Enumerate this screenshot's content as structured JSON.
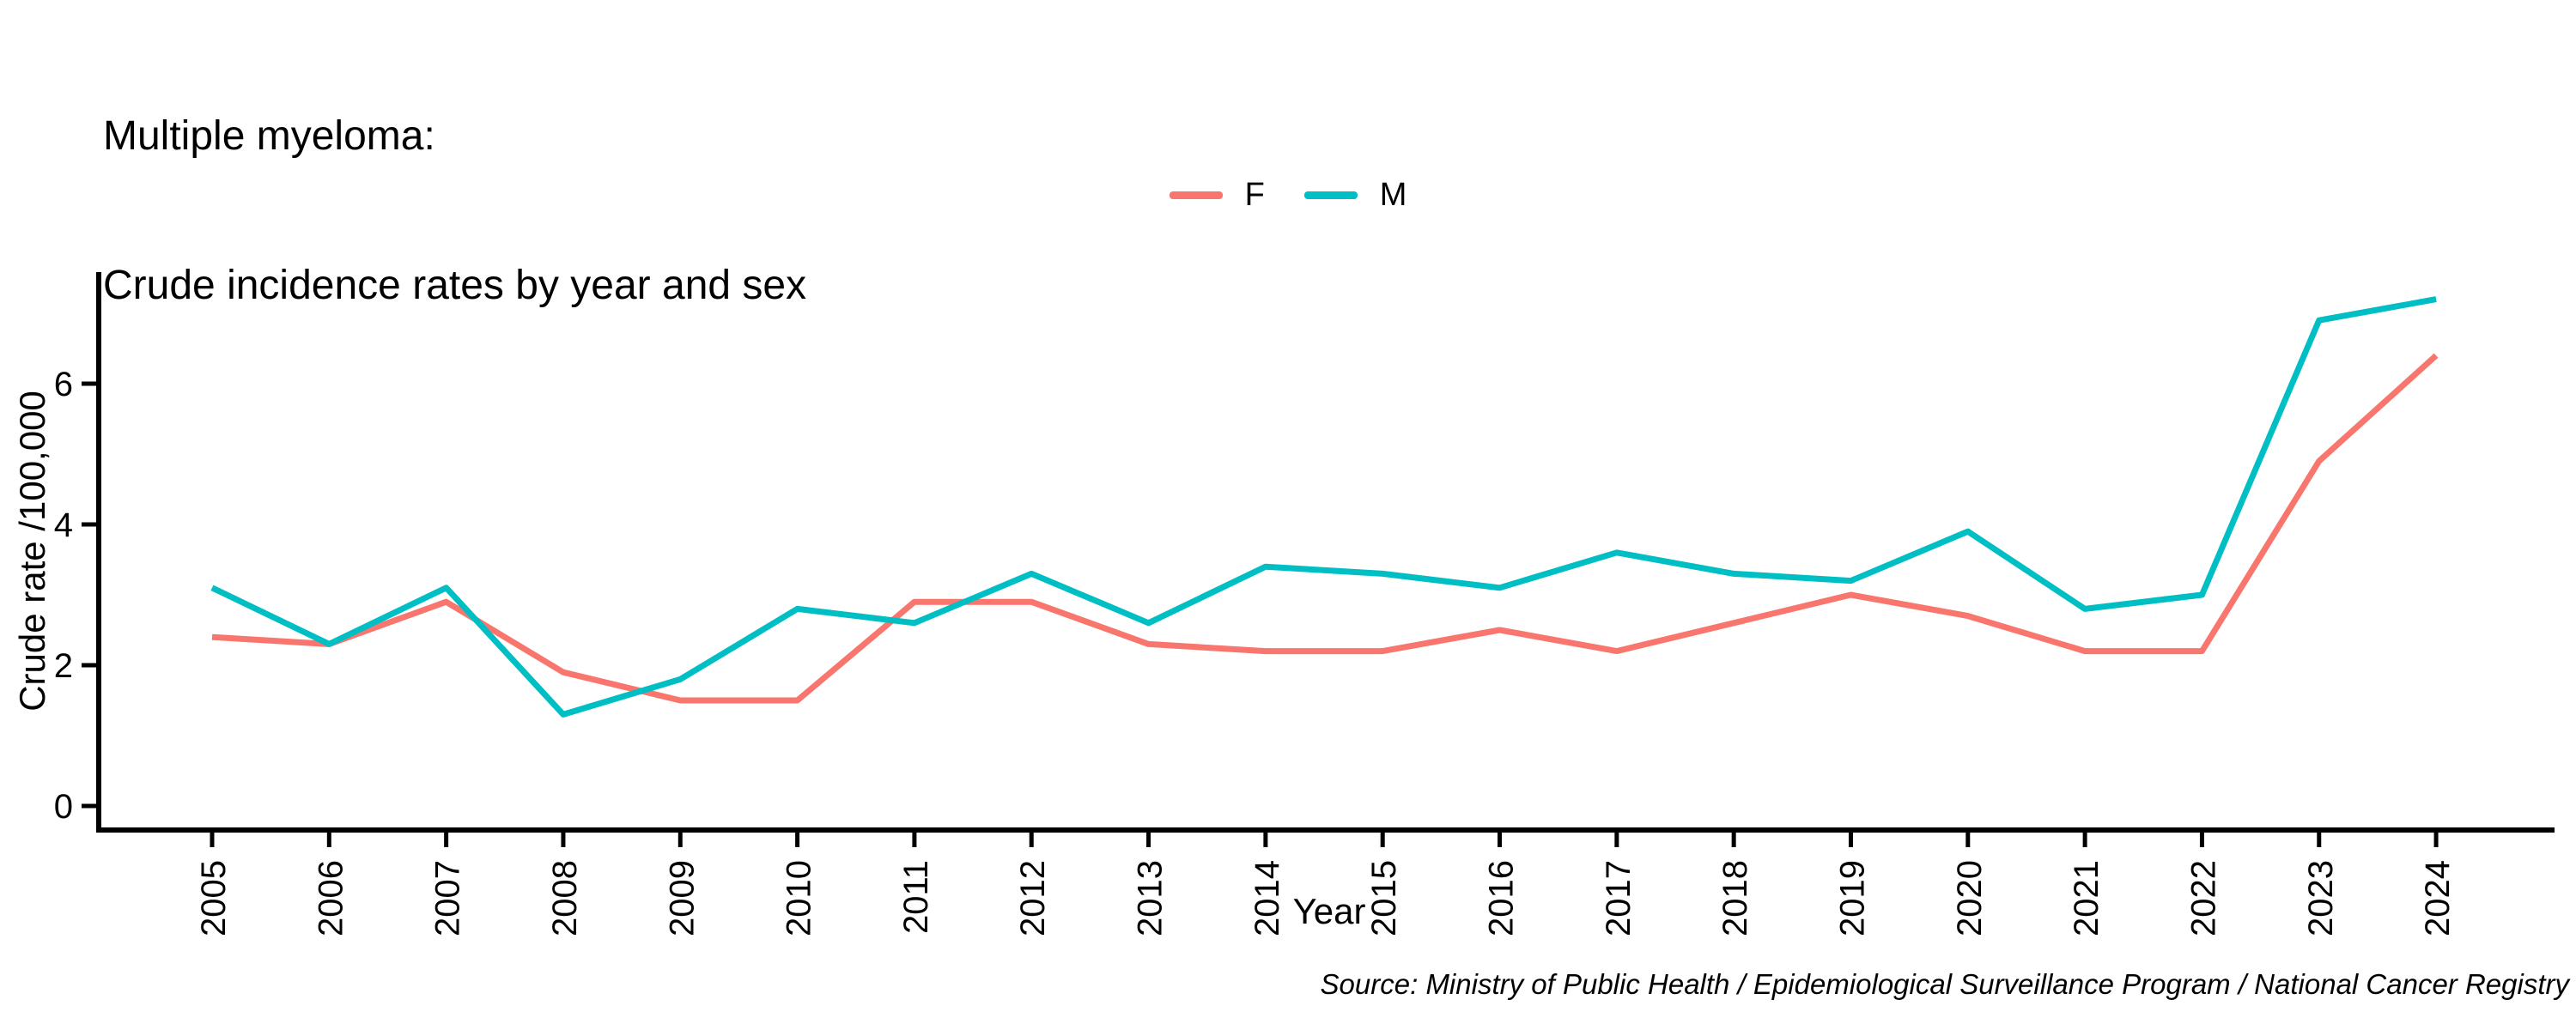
{
  "title": {
    "line1": "Multiple myeloma:",
    "line2": "Crude incidence rates by year and sex"
  },
  "legend": {
    "items": [
      {
        "label": "F",
        "color": "#F8766D"
      },
      {
        "label": "M",
        "color": "#00BFC4"
      }
    ]
  },
  "axes": {
    "x_label": "Year",
    "y_label": "Crude rate /100,000",
    "y_ticks": [
      0,
      2,
      4,
      6
    ]
  },
  "source": "Source: Ministry of Public Health / Epidemiological Surveillance Program / National Cancer Registry",
  "colors": {
    "axis": "#000000",
    "female": "#F8766D",
    "male": "#00BFC4"
  },
  "chart_data": {
    "type": "line",
    "title": "Multiple myeloma: Crude incidence rates by year and sex",
    "xlabel": "Year",
    "ylabel": "Crude rate /100,000",
    "x": [
      2005,
      2006,
      2007,
      2008,
      2009,
      2010,
      2011,
      2012,
      2013,
      2014,
      2015,
      2016,
      2017,
      2018,
      2019,
      2020,
      2021,
      2022,
      2023,
      2024
    ],
    "series": [
      {
        "name": "F",
        "color": "#F8766D",
        "values": [
          2.4,
          2.3,
          2.9,
          1.9,
          1.5,
          1.5,
          2.9,
          2.9,
          2.3,
          2.2,
          2.2,
          2.5,
          2.2,
          2.6,
          3.0,
          2.7,
          2.2,
          2.2,
          4.9,
          6.4
        ]
      },
      {
        "name": "M",
        "color": "#00BFC4",
        "values": [
          3.1,
          2.3,
          3.1,
          1.3,
          1.8,
          2.8,
          2.6,
          3.3,
          2.6,
          3.4,
          3.3,
          3.1,
          3.6,
          3.3,
          3.2,
          3.9,
          2.8,
          3.0,
          6.9,
          7.2
        ]
      }
    ],
    "ylim": [
      -0.35,
      7.6
    ],
    "y_ticks": [
      0,
      2,
      4,
      6
    ],
    "grid": false,
    "legend_position": "top-center"
  }
}
